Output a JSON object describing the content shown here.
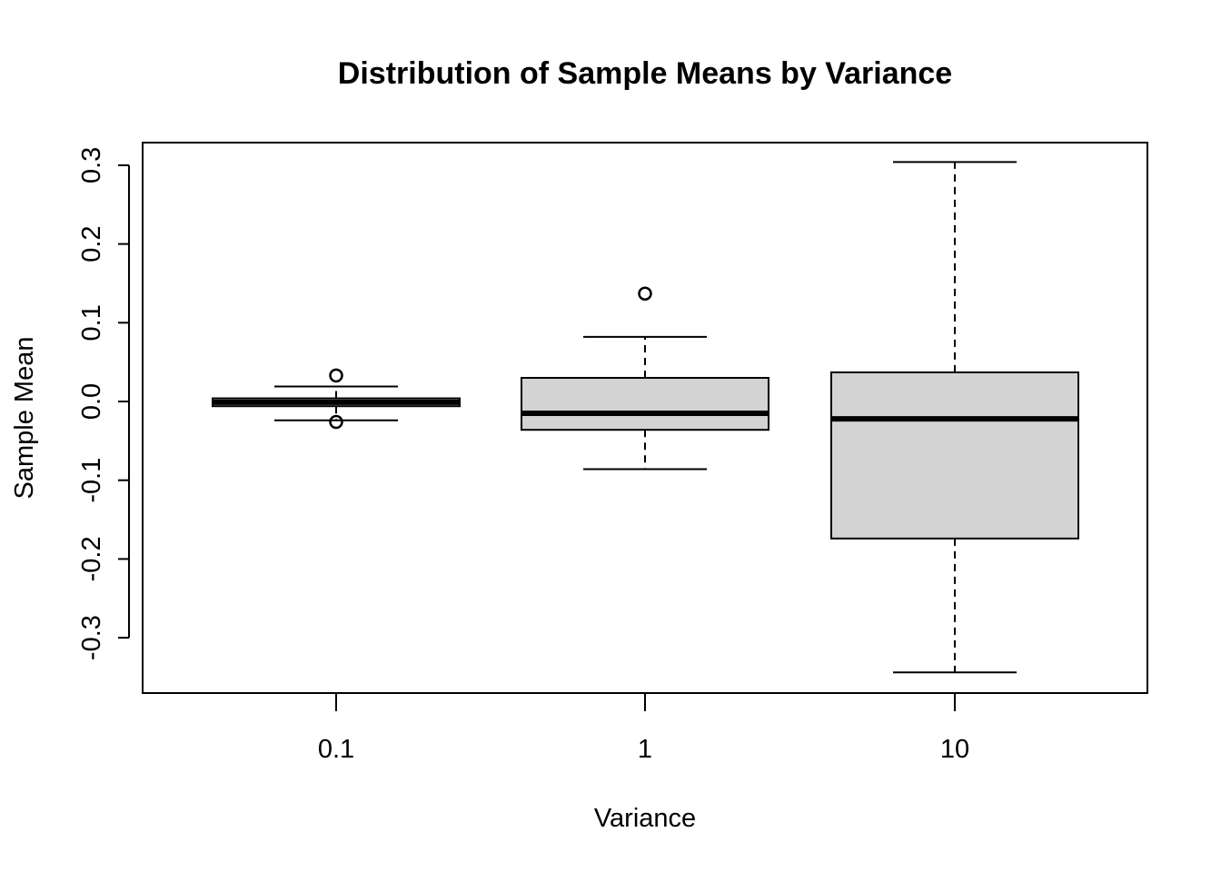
{
  "chart_data": {
    "type": "boxplot",
    "title": "Distribution of Sample Means by Variance",
    "xlabel": "Variance",
    "ylabel": "Sample Mean",
    "categories": [
      "0.1",
      "1",
      "10"
    ],
    "y_ticks": [
      -0.3,
      -0.2,
      -0.1,
      0.0,
      0.1,
      0.2,
      0.3
    ],
    "y_tick_labels": [
      "-0.3",
      "-0.2",
      "-0.1",
      "0.0",
      "0.1",
      "0.2",
      "0.3"
    ],
    "ylim": [
      -0.37,
      0.33
    ],
    "grid": false,
    "legend": "none",
    "boxes": [
      {
        "category": "0.1",
        "whisker_low": -0.024,
        "q1": -0.006,
        "median": -0.001,
        "q3": 0.004,
        "whisker_high": 0.019,
        "outliers": [
          0.033,
          -0.026
        ]
      },
      {
        "category": "1",
        "whisker_low": -0.086,
        "q1": -0.036,
        "median": -0.015,
        "q3": 0.03,
        "whisker_high": 0.082,
        "outliers": [
          0.137
        ]
      },
      {
        "category": "10",
        "whisker_low": -0.344,
        "q1": -0.174,
        "median": -0.022,
        "q3": 0.037,
        "whisker_high": 0.304,
        "outliers": []
      }
    ],
    "colors": {
      "box_fill": "#d3d3d3",
      "stroke": "#000000"
    }
  }
}
